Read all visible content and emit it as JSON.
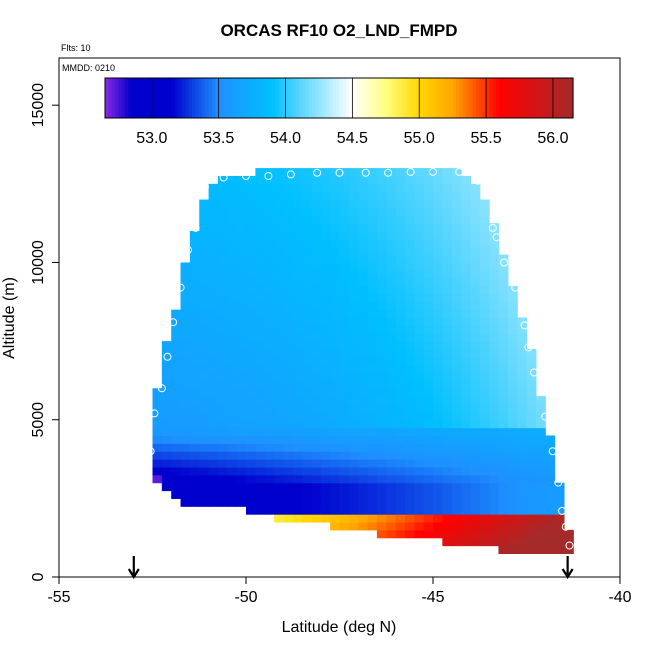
{
  "chart_data": {
    "type": "heatmap",
    "title": "ORCAS RF10 O2_LND_FMPD",
    "annotations": {
      "flights": "Flts: 10",
      "date": "MMDD: 0210"
    },
    "xlabel": "Latitude (deg N)",
    "ylabel": "Altitude (m)",
    "xlim": [
      -55,
      -40
    ],
    "ylim": [
      0,
      16500
    ],
    "x_ticks": [
      -55,
      -50,
      -45,
      -40
    ],
    "x_tick_labels": [
      "-55",
      "-50",
      "-45",
      "-40"
    ],
    "y_ticks": [
      0,
      5000,
      10000,
      15000
    ],
    "y_tick_labels": [
      "0",
      "5000",
      "10000",
      "15000"
    ],
    "colorbar": {
      "min": 52.65,
      "max": 56.15,
      "ticks": [
        53.0,
        53.5,
        54.0,
        54.5,
        55.0,
        55.5,
        56.0
      ],
      "tick_labels": [
        "53.0",
        "53.5",
        "54.0",
        "54.5",
        "55.0",
        "55.5",
        "56.0"
      ],
      "stops": [
        {
          "v": 52.65,
          "c": "#8a2be2"
        },
        {
          "v": 52.85,
          "c": "#0000cd"
        },
        {
          "v": 53.15,
          "c": "#0000cd"
        },
        {
          "v": 53.5,
          "c": "#1e90ff"
        },
        {
          "v": 53.9,
          "c": "#00bfff"
        },
        {
          "v": 54.5,
          "c": "#ffffff"
        },
        {
          "v": 54.75,
          "c": "#ffff80"
        },
        {
          "v": 55.0,
          "c": "#ffd700"
        },
        {
          "v": 55.25,
          "c": "#ffa500"
        },
        {
          "v": 55.6,
          "c": "#ff0000"
        },
        {
          "v": 56.15,
          "c": "#a52a2a"
        }
      ]
    },
    "profile_points": [
      {
        "lat": -52.7,
        "alt": 3000
      },
      {
        "lat": -52.55,
        "alt": 4000
      },
      {
        "lat": -52.45,
        "alt": 5200
      },
      {
        "lat": -52.25,
        "alt": 6000
      },
      {
        "lat": -52.1,
        "alt": 7000
      },
      {
        "lat": -51.95,
        "alt": 8100
      },
      {
        "lat": -51.75,
        "alt": 9200
      },
      {
        "lat": -51.55,
        "alt": 10400
      },
      {
        "lat": -51.35,
        "alt": 11100
      },
      {
        "lat": -51.1,
        "alt": 12400
      },
      {
        "lat": -50.6,
        "alt": 12700
      },
      {
        "lat": -50.0,
        "alt": 12750
      },
      {
        "lat": -49.4,
        "alt": 12750
      },
      {
        "lat": -48.8,
        "alt": 12800
      },
      {
        "lat": -48.1,
        "alt": 12850
      },
      {
        "lat": -47.5,
        "alt": 12850
      },
      {
        "lat": -46.8,
        "alt": 12850
      },
      {
        "lat": -46.2,
        "alt": 12850
      },
      {
        "lat": -45.6,
        "alt": 12880
      },
      {
        "lat": -45.0,
        "alt": 12880
      },
      {
        "lat": -44.3,
        "alt": 12880
      },
      {
        "lat": -43.8,
        "alt": 12600
      },
      {
        "lat": -43.4,
        "alt": 11100
      },
      {
        "lat": -43.3,
        "alt": 10800
      },
      {
        "lat": -43.1,
        "alt": 10000
      },
      {
        "lat": -42.8,
        "alt": 9200
      },
      {
        "lat": -42.55,
        "alt": 8000
      },
      {
        "lat": -42.45,
        "alt": 7300
      },
      {
        "lat": -42.3,
        "alt": 6500
      },
      {
        "lat": -42.0,
        "alt": 5100
      },
      {
        "lat": -41.8,
        "alt": 4000
      },
      {
        "lat": -41.65,
        "alt": 3000
      },
      {
        "lat": -41.55,
        "alt": 2100
      },
      {
        "lat": -41.45,
        "alt": 1600
      },
      {
        "lat": -41.35,
        "alt": 1000
      }
    ],
    "markers": [
      {
        "lat": -53.0,
        "label": "arrow"
      },
      {
        "lat": -41.4,
        "label": "arrow"
      }
    ]
  }
}
